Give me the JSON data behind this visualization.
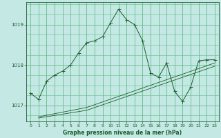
{
  "title": "Graphe pression niveau de la mer (hPa)",
  "bg_color": "#c4e8e4",
  "grid_color": "#66bb88",
  "line_color": "#1a5c2a",
  "xlim": [
    -0.5,
    23.5
  ],
  "ylim": [
    1016.6,
    1019.55
  ],
  "yticks": [
    1017,
    1018,
    1019
  ],
  "xticks": [
    0,
    1,
    2,
    3,
    4,
    5,
    6,
    7,
    8,
    9,
    10,
    11,
    12,
    13,
    14,
    15,
    16,
    17,
    18,
    19,
    20,
    21,
    22,
    23
  ],
  "series1_x": [
    0,
    1,
    2,
    3,
    4,
    5,
    6,
    7,
    8,
    9,
    10,
    11,
    12,
    13,
    14,
    15,
    16,
    17,
    18,
    19,
    20,
    21,
    22,
    23
  ],
  "series1_y": [
    1017.3,
    1017.15,
    1017.6,
    1017.75,
    1017.85,
    1018.0,
    1018.3,
    1018.55,
    1018.6,
    1018.7,
    1019.05,
    1019.38,
    1019.12,
    1019.0,
    1018.6,
    1017.8,
    1017.7,
    1018.05,
    1017.35,
    1017.1,
    1017.45,
    1018.1,
    1018.13,
    1018.13
  ],
  "series2_x": [
    1,
    7,
    23
  ],
  "series2_y": [
    1016.72,
    1016.95,
    1018.05
  ],
  "series3_x": [
    1,
    7,
    23
  ],
  "series3_y": [
    1016.69,
    1016.88,
    1017.97
  ],
  "marker_size": 2.0,
  "lw": 0.7
}
